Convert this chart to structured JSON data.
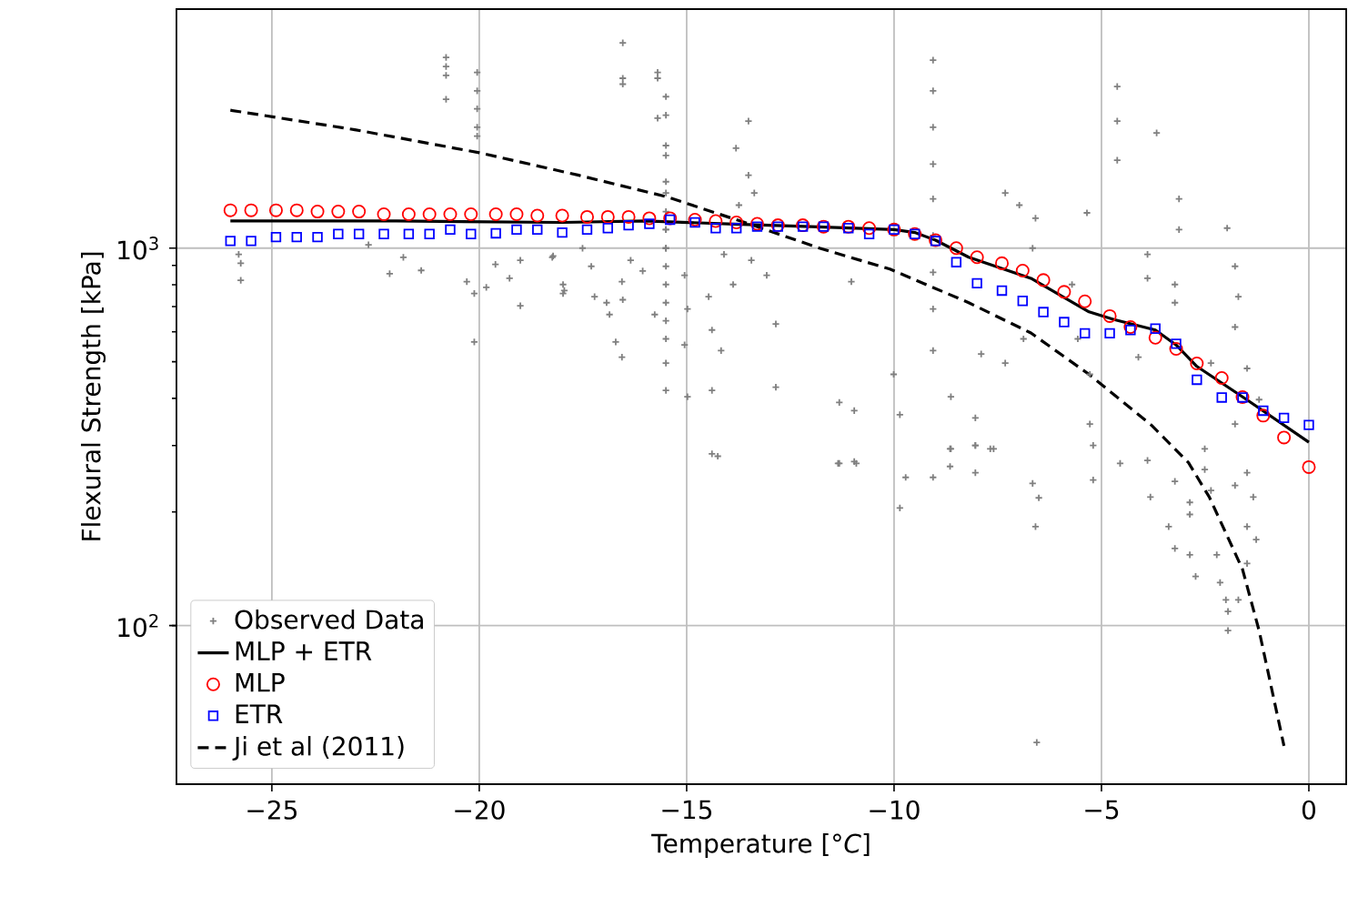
{
  "chart_data": {
    "type": "scatter",
    "xlabel": "Temperature [°*C*]",
    "ylabel": "Flexural Strength [kPa]",
    "xlim": [
      -27.3,
      0.9
    ],
    "ylim": [
      38,
      4300
    ],
    "xticks": [
      {
        "value": -25,
        "label": "−25"
      },
      {
        "value": -20,
        "label": "−20"
      },
      {
        "value": -15,
        "label": "−15"
      },
      {
        "value": -10,
        "label": "−10"
      },
      {
        "value": -5,
        "label": "−5"
      },
      0
    ],
    "yticks": [
      {
        "value": 100,
        "label": "10$^{2}$"
      },
      {
        "value": 1000,
        "label": "10$^{3}$"
      }
    ],
    "log": "y",
    "grid": true,
    "legend": "bottom left",
    "series": [
      {
        "name": "Observed Data",
        "marker": "cross",
        "color": "#808080",
        "x": [
          -20.8,
          -20.8,
          -20.8,
          -20.8,
          -20.05,
          -20.05,
          -20.05,
          -20.05,
          -20.05,
          -25.8,
          -25.75,
          -25.75,
          -22.67,
          -22.16,
          -21.83,
          -21.4,
          -20.3,
          -20.12,
          -20.12,
          -19.83,
          -19.61,
          -19.27,
          -19.01,
          -19.01,
          -18.22,
          -17.98,
          -17.98,
          -16.54,
          -16.54,
          -16.54,
          -15.7,
          -15.7,
          -15.5,
          -15.5,
          -15.7,
          -15.5,
          -15.5,
          -15.5,
          -15.5,
          -15.5,
          -15.5,
          -15.5,
          -15.5,
          -15.5,
          -15.5,
          -15.5,
          -15.5,
          -15.5,
          -15.5,
          -15.5,
          -15.5,
          -18.24,
          -17.51,
          -17.3,
          -17.95,
          -17.22,
          -16.93,
          -16.86,
          -16.56,
          -16.54,
          -16.71,
          -16.56,
          -16.35,
          -16.06,
          -15.77,
          -15.05,
          -14.98,
          -15.05,
          -14.98,
          -14.47,
          -14.39,
          -14.17,
          -14.39,
          -14.39,
          -14.1,
          -13.88,
          -13.74,
          -13.81,
          -13.51,
          -13.51,
          -13.37,
          -13.44,
          -13.07,
          -12.85,
          -12.85,
          -11.32,
          -10.96,
          -10.96,
          -11.32,
          -11.03,
          -10.01,
          -9.86,
          -9.06,
          -9.06,
          -9.06,
          -9.06,
          -9.06,
          -9.06,
          -9.06,
          -9.06,
          -9.06,
          -7.32,
          -6.98,
          -6.59,
          -5.35,
          -6.66,
          -4.62,
          -4.62,
          -4.62,
          -3.67,
          -3.13,
          -3.13,
          -1.97,
          -1.78,
          -1.7,
          -1.78,
          -3.89,
          -3.89,
          -3.23,
          -3.23,
          -4.11,
          -5.71,
          -5.57,
          -5.28,
          -5.28,
          -8.63,
          -8.04,
          -8.04,
          -7.68,
          -8.63,
          -7.32,
          -6.88,
          -2.51,
          -1.78,
          -1.49,
          -1.2,
          -2.36,
          -7.9,
          -11.35,
          -10.91,
          -9.72,
          -9.86,
          -9.06,
          -8.65,
          -8.65,
          -8.04,
          -8.04,
          -7.6,
          -6.66,
          -6.51,
          -6.59,
          -6.56,
          -5.2,
          -5.2,
          -4.55,
          -3.89,
          -3.82,
          -3.38,
          -3.23,
          -2.87,
          -2.73,
          -2.87,
          -2.87,
          -2.22,
          -2.14,
          -2.0,
          -1.95,
          -1.95,
          -1.7,
          -1.49,
          -1.49,
          -1.34,
          -1.49,
          -1.78,
          -1.27,
          -2.51,
          -2.36,
          -3.23,
          -14.25
        ],
        "values": [
          3200,
          3030,
          2870,
          2480,
          2920,
          2610,
          2340,
          2090,
          1980,
          963,
          912,
          822,
          1020,
          856,
          946,
          873,
          815,
          758,
          564,
          787,
          906,
          832,
          704,
          929,
          953,
          801,
          758,
          3500,
          2820,
          2720,
          2920,
          2820,
          2520,
          2250,
          2210,
          1870,
          1760,
          1500,
          1400,
          1250,
          1120,
          1000,
          895,
          801,
          717,
          642,
          575,
          496,
          420,
          1120,
          1000,
          946,
          1000,
          895,
          772,
          744,
          717,
          667,
          815,
          730,
          564,
          514,
          929,
          870,
          667,
          847,
          690,
          554,
          404,
          744,
          607,
          535,
          420,
          285,
          963,
          801,
          1300,
          1840,
          2170,
          1560,
          1400,
          929,
          847,
          630,
          428,
          390,
          371,
          272,
          269,
          815,
          463,
          362,
          3150,
          2610,
          2090,
          1670,
          1350,
          1080,
          863,
          690,
          535,
          1400,
          1300,
          1200,
          1240,
          1000,
          2680,
          2170,
          1710,
          2020,
          1350,
          1120,
          1130,
          895,
          744,
          618,
          963,
          832,
          801,
          717,
          514,
          801,
          575,
          463,
          342,
          404,
          355,
          300,
          294,
          294,
          496,
          575,
          294,
          342,
          480,
          397,
          496,
          524,
          269,
          269,
          247,
          205,
          247,
          264,
          294,
          300,
          254,
          294,
          238,
          218,
          183,
          49,
          300,
          243,
          269,
          274,
          219,
          183,
          160,
          154,
          135,
          197,
          212,
          154,
          130,
          117,
          109,
          97,
          117,
          146,
          183,
          219,
          254,
          235,
          169,
          259,
          228,
          241,
          281
        ]
      },
      {
        "name": "MLP + ETR",
        "type": "line",
        "marker": "none",
        "line_style": "solid",
        "color": "#000000",
        "x": [
          -26,
          -22,
          -18,
          -16,
          -14,
          -12,
          -10,
          -9.5,
          -9,
          -8.2,
          -6.7,
          -5.3,
          -4.7,
          -3.7,
          -3.2,
          -2.7,
          -1.5,
          0
        ],
        "values": [
          1180,
          1180,
          1170,
          1180,
          1160,
          1140,
          1120,
          1100,
          1050,
          946,
          832,
          678,
          647,
          607,
          554,
          486,
          397,
          306
        ]
      },
      {
        "name": "MLP",
        "marker": "circle",
        "color": "#ff0000",
        "x": [
          -26,
          -25.5,
          -24.9,
          -24.4,
          -23.9,
          -23.4,
          -22.9,
          -22.3,
          -21.7,
          -21.2,
          -20.7,
          -20.2,
          -19.6,
          -19.1,
          -18.6,
          -18,
          -17.4,
          -16.9,
          -16.4,
          -15.9,
          -15.4,
          -14.8,
          -14.3,
          -13.8,
          -13.3,
          -12.8,
          -12.2,
          -11.7,
          -11.1,
          -10.6,
          -10,
          -9.5,
          -9,
          -8.5,
          -8,
          -7.4,
          -6.9,
          -6.4,
          -5.9,
          -5.4,
          -4.8,
          -4.3,
          -3.7,
          -3.2,
          -2.7,
          -2.1,
          -1.6,
          -1.1,
          -0.6,
          0
        ],
        "values": [
          1260,
          1260,
          1260,
          1260,
          1250,
          1250,
          1250,
          1230,
          1230,
          1230,
          1230,
          1230,
          1230,
          1230,
          1220,
          1220,
          1210,
          1210,
          1210,
          1200,
          1200,
          1190,
          1180,
          1170,
          1160,
          1150,
          1150,
          1140,
          1140,
          1130,
          1120,
          1090,
          1050,
          1000,
          946,
          912,
          872,
          823,
          766,
          723,
          661,
          618,
          579,
          541,
          495,
          453,
          403,
          360,
          315,
          263
        ]
      },
      {
        "name": "ETR",
        "marker": "square",
        "color": "#0000ff",
        "x": [
          -26,
          -25.5,
          -24.9,
          -24.4,
          -23.9,
          -23.4,
          -22.9,
          -22.3,
          -21.7,
          -21.2,
          -20.7,
          -20.2,
          -19.6,
          -19.1,
          -18.6,
          -18,
          -17.4,
          -16.9,
          -16.4,
          -15.9,
          -15.4,
          -14.8,
          -14.3,
          -13.8,
          -13.3,
          -12.8,
          -12.2,
          -11.7,
          -11.1,
          -10.6,
          -10,
          -9.5,
          -9,
          -8.5,
          -8,
          -7.4,
          -6.9,
          -6.4,
          -5.9,
          -5.4,
          -4.8,
          -4.3,
          -3.7,
          -3.2,
          -2.7,
          -2.1,
          -1.6,
          -1.1,
          -0.6,
          0
        ],
        "values": [
          1045,
          1045,
          1070,
          1070,
          1070,
          1090,
          1090,
          1090,
          1090,
          1090,
          1120,
          1090,
          1095,
          1120,
          1120,
          1100,
          1120,
          1130,
          1150,
          1160,
          1190,
          1170,
          1130,
          1130,
          1140,
          1140,
          1140,
          1140,
          1130,
          1090,
          1120,
          1090,
          1045,
          918,
          807,
          772,
          725,
          677,
          637,
          595,
          595,
          607,
          612,
          558,
          448,
          402,
          402,
          371,
          355,
          340
        ]
      },
      {
        "name": "Ji et al (2011)",
        "type": "line",
        "marker": "none",
        "line_style": "dashed",
        "color": "#000000",
        "x": [
          -26,
          -23,
          -20,
          -17.6,
          -15.5,
          -13.4,
          -11.8,
          -10.1,
          -8.2,
          -6.7,
          -5.3,
          -3.8,
          -2.9,
          -2.4,
          -1.6,
          -1.2,
          -0.6
        ],
        "values": [
          2320,
          2060,
          1790,
          1560,
          1370,
          1150,
          1000,
          880,
          717,
          596,
          463,
          340,
          270,
          219,
          141,
          97,
          48
        ]
      }
    ]
  }
}
